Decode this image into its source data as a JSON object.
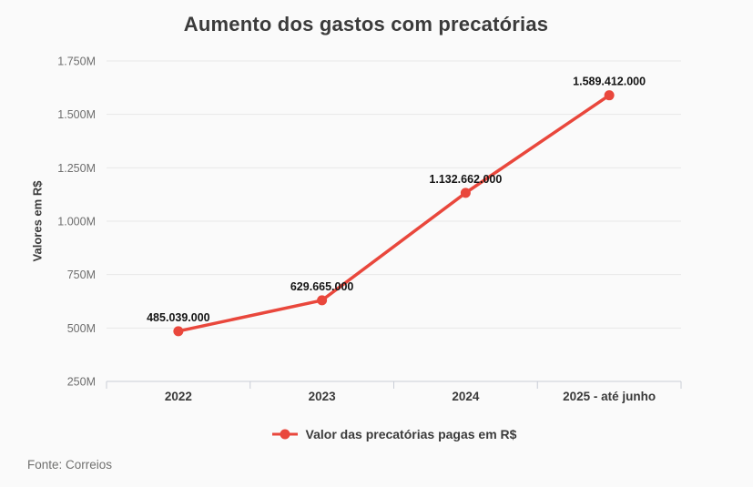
{
  "chart_data": {
    "type": "line",
    "title": "Aumento dos gastos com precatórias",
    "categories": [
      "2022",
      "2023",
      "2024",
      "2025 - até junho"
    ],
    "series": [
      {
        "name": "Valor das precatórias pagas em R$",
        "values": [
          485039000,
          629665000,
          1132662000,
          1589412000
        ],
        "value_labels": [
          "485.039.000",
          "629.665.000",
          "1.132.662.000",
          "1.589.412.000"
        ],
        "color": "#e9473c"
      }
    ],
    "xlabel": "",
    "ylabel": "Valores em R$",
    "ylim": [
      250000000,
      1750000000
    ],
    "yticks": [
      250000000,
      500000000,
      750000000,
      1000000000,
      1250000000,
      1500000000,
      1750000000
    ],
    "ytick_labels": [
      "250M",
      "500M",
      "750M",
      "1.000M",
      "1.250M",
      "1.500M",
      "1.750M"
    ],
    "grid": true,
    "legend_position": "bottom",
    "source": "Fonte: Correios"
  },
  "colors": {
    "accent": "#e9473c",
    "grid": "#e8e8e8",
    "axis": "#c9cdd6",
    "ytick_text": "#6e6e6e",
    "xtick_text": "#3a3a3a",
    "datalabel_text": "#141414",
    "title_text": "#3b3b3b",
    "source_text": "#70706f",
    "background": "#fafafa"
  }
}
